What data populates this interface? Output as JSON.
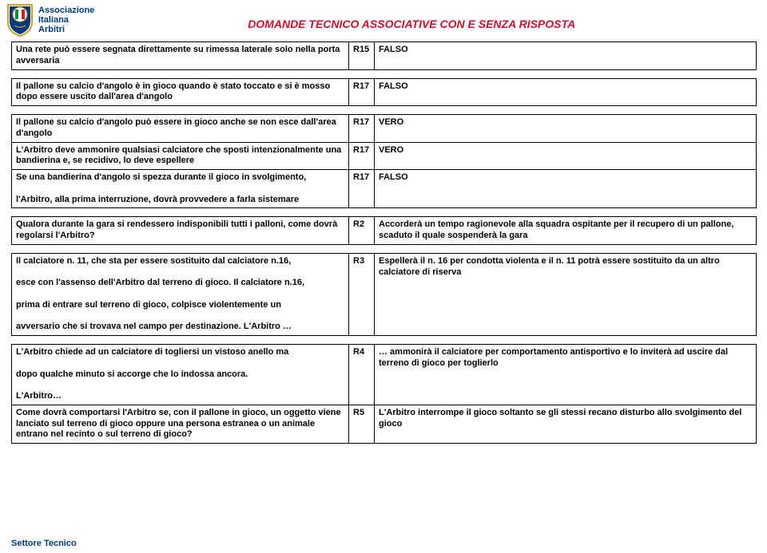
{
  "header": {
    "org_line1": "Associazione",
    "org_line2": "Italiana",
    "org_line3": "Arbitri",
    "title": "DOMANDE TECNICO ASSOCIATIVE CON E SENZA RISPOSTA"
  },
  "logo_colors": {
    "blue": "#003a7d",
    "gold": "#c9a227",
    "green": "#008c45",
    "white": "#ffffff",
    "red": "#cd212a"
  },
  "tables": [
    {
      "rows": [
        {
          "q": "Una rete può essere segnata direttamente su rimessa laterale solo nella porta avversaria",
          "code": "R15",
          "ans": "FALSO"
        }
      ]
    },
    {
      "rows": [
        {
          "q": "Il pallone su calcio d'angolo è in gioco quando è stato toccato e si è mosso dopo essere uscito dall'area d'angolo",
          "code": "R17",
          "ans": "FALSO"
        }
      ]
    },
    {
      "rows": [
        {
          "q": "Il pallone su calcio d'angolo può essere in gioco anche se non esce dall'area d'angolo",
          "code": "R17",
          "ans": "VERO"
        },
        {
          "q": "L'Arbitro deve ammonire qualsiasi calciatore che sposti intenzionalmente una bandierina e, se recidivo, lo deve espellere",
          "code": "R17",
          "ans": "VERO"
        },
        {
          "q": "Se una bandierina d'angolo si spezza durante il gioco in svolgimento,\n\nl'Arbitro, alla prima interruzione, dovrà provvedere a farla sistemare",
          "code": "R17",
          "ans": "FALSO"
        }
      ]
    },
    {
      "rows": [
        {
          "q": "Qualora durante la gara si rendessero indisponibili tutti i palloni, come dovrà regolarsi l'Arbitro?",
          "code": "R2",
          "ans": "Accorderà un tempo ragionevole alla squadra ospitante per il recupero di un pallone, scaduto il quale sospenderà la gara"
        }
      ]
    },
    {
      "rows": [
        {
          "q": "Il calciatore n. 11, che sta per essere sostituito dal calciatore n.16,\n\nesce con l'assenso dell'Arbitro dal terreno di gioco. Il calciatore n.16,\n\nprima di entrare sul terreno di gioco, colpisce violentemente un\n\navversario che si trovava nel campo per destinazione. L'Arbitro …",
          "code": "R3",
          "ans": "Espellerà il n. 16 per condotta violenta e il n. 11 potrà essere sostituito da un altro calciatore di riserva"
        }
      ]
    },
    {
      "rows": [
        {
          "q": "L'Arbitro chiede ad un calciatore di togliersi un vistoso anello ma\n\ndopo qualche minuto si accorge che lo indossa ancora.\n\nL'Arbitro…",
          "code": "R4",
          "ans": "… ammonirà il calciatore per comportamento antisportivo e lo inviterà ad uscire dal terreno di gioco per toglierlo"
        },
        {
          "q": "Come dovrà comportarsi l'Arbitro se, con il pallone in gioco, un oggetto viene lanciato sul terreno di gioco oppure una persona estranea o un animale entrano nel recinto o sul terreno di gioco?",
          "code": "R5",
          "ans": "L'Arbitro interrompe il gioco soltanto se gli stessi recano disturbo allo svolgimento del gioco"
        }
      ]
    }
  ],
  "footer": "Settore Tecnico"
}
